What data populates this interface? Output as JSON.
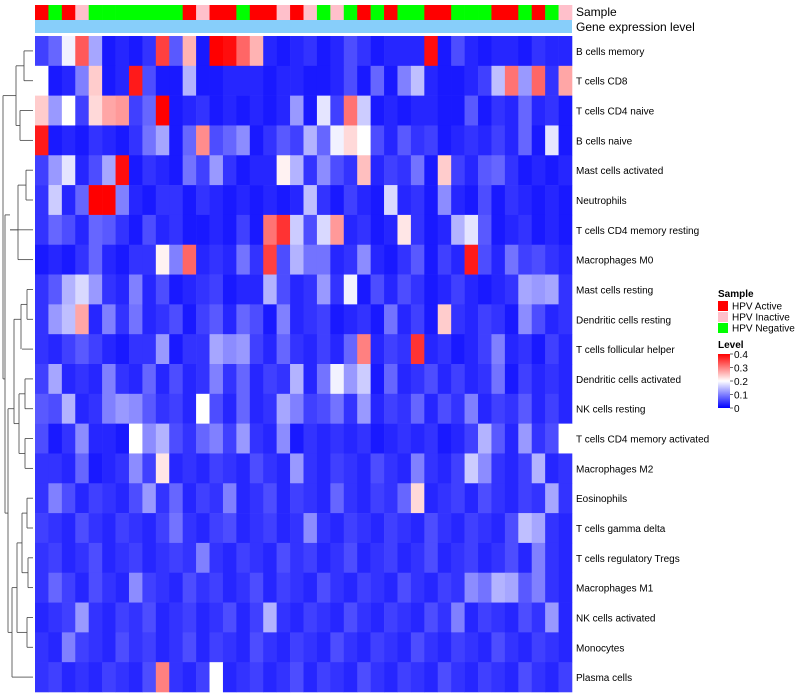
{
  "chart_data": {
    "type": "heatmap",
    "annotation_tracks": [
      "Sample",
      "Gene expression level"
    ],
    "samples": [
      "A",
      "N",
      "A",
      "I",
      "N",
      "N",
      "N",
      "N",
      "N",
      "N",
      "N",
      "A",
      "I",
      "A",
      "A",
      "N",
      "A",
      "A",
      "I",
      "A",
      "I",
      "N",
      "I",
      "N",
      "A",
      "N",
      "A",
      "N",
      "N",
      "A",
      "A",
      "N",
      "N",
      "N",
      "A",
      "A",
      "N",
      "A",
      "N",
      "I"
    ],
    "rows": [
      "B cells memory",
      "T cells CD8",
      "T cells CD4 naive",
      "B cells naive",
      "Mast cells activated",
      "Neutrophils",
      "T cells CD4 memory resting",
      "Macrophages M0",
      "Mast cells resting",
      "Dendritic cells resting",
      "T cells follicular helper",
      "Dendritic cells activated",
      "NK cells resting",
      "T cells CD4 memory activated",
      "Macrophages M2",
      "Eosinophils",
      "T cells gamma delta",
      "T cells regulatory  Tregs",
      "Macrophages M1",
      "NK cells activated",
      "Monocytes",
      "Plasma cells"
    ],
    "values": [
      [
        0.05,
        0.08,
        0.19,
        0.33,
        0.13,
        0.02,
        0.03,
        0.02,
        0.04,
        0.35,
        0.07,
        0.26,
        0.02,
        0.4,
        0.39,
        0.32,
        0.26,
        0.03,
        0.02,
        0.03,
        0.04,
        0.02,
        0.03,
        0.06,
        0.04,
        0.02,
        0.03,
        0.03,
        0.03,
        0.39,
        0.02,
        0.06,
        0.03,
        0.02,
        0.03,
        0.03,
        0.02,
        0.04,
        0.03,
        0.03
      ],
      [
        0.2,
        0.02,
        0.03,
        0.1,
        0.24,
        0.02,
        0.03,
        0.38,
        0.06,
        0.02,
        0.02,
        0.14,
        0.02,
        0.02,
        0.03,
        0.03,
        0.03,
        0.02,
        0.03,
        0.03,
        0.02,
        0.02,
        0.03,
        0.06,
        0.02,
        0.08,
        0.02,
        0.1,
        0.15,
        0.03,
        0.02,
        0.02,
        0.03,
        0.05,
        0.15,
        0.31,
        0.12,
        0.32,
        0.04,
        0.27
      ],
      [
        0.24,
        0.12,
        0.2,
        0.05,
        0.23,
        0.27,
        0.28,
        0.05,
        0.08,
        0.4,
        0.02,
        0.03,
        0.04,
        0.02,
        0.03,
        0.02,
        0.03,
        0.02,
        0.03,
        0.12,
        0.02,
        0.18,
        0.05,
        0.31,
        0.16,
        0.02,
        0.03,
        0.02,
        0.03,
        0.03,
        0.02,
        0.02,
        0.07,
        0.02,
        0.04,
        0.03,
        0.08,
        0.03,
        0.04,
        0.02
      ],
      [
        0.38,
        0.02,
        0.03,
        0.02,
        0.04,
        0.03,
        0.02,
        0.04,
        0.09,
        0.13,
        0.02,
        0.08,
        0.29,
        0.06,
        0.08,
        0.11,
        0.02,
        0.04,
        0.07,
        0.05,
        0.14,
        0.08,
        0.19,
        0.23,
        0.2,
        0.06,
        0.03,
        0.07,
        0.04,
        0.05,
        0.02,
        0.03,
        0.04,
        0.03,
        0.05,
        0.03,
        0.08,
        0.02,
        0.18,
        0.02
      ],
      [
        0.05,
        0.12,
        0.18,
        0.03,
        0.06,
        0.13,
        0.39,
        0.02,
        0.04,
        0.03,
        0.02,
        0.09,
        0.05,
        0.12,
        0.04,
        0.02,
        0.03,
        0.03,
        0.21,
        0.14,
        0.04,
        0.11,
        0.06,
        0.04,
        0.25,
        0.03,
        0.05,
        0.04,
        0.09,
        0.02,
        0.24,
        0.05,
        0.03,
        0.07,
        0.08,
        0.04,
        0.02,
        0.03,
        0.02,
        0.03
      ],
      [
        0.04,
        0.16,
        0.03,
        0.08,
        0.4,
        0.4,
        0.1,
        0.03,
        0.02,
        0.04,
        0.04,
        0.02,
        0.04,
        0.03,
        0.02,
        0.03,
        0.02,
        0.03,
        0.02,
        0.03,
        0.15,
        0.04,
        0.02,
        0.05,
        0.03,
        0.02,
        0.17,
        0.03,
        0.04,
        0.02,
        0.11,
        0.03,
        0.02,
        0.06,
        0.02,
        0.04,
        0.03,
        0.02,
        0.03,
        0.02
      ],
      [
        0.04,
        0.08,
        0.06,
        0.03,
        0.08,
        0.07,
        0.04,
        0.02,
        0.06,
        0.03,
        0.04,
        0.02,
        0.02,
        0.03,
        0.02,
        0.05,
        0.02,
        0.31,
        0.36,
        0.16,
        0.06,
        0.17,
        0.28,
        0.03,
        0.04,
        0.02,
        0.03,
        0.22,
        0.04,
        0.02,
        0.03,
        0.14,
        0.18,
        0.07,
        0.02,
        0.03,
        0.04,
        0.02,
        0.03,
        0.02
      ],
      [
        0.02,
        0.03,
        0.02,
        0.04,
        0.08,
        0.03,
        0.02,
        0.04,
        0.04,
        0.21,
        0.1,
        0.32,
        0.03,
        0.04,
        0.03,
        0.09,
        0.04,
        0.35,
        0.06,
        0.14,
        0.09,
        0.09,
        0.03,
        0.04,
        0.11,
        0.03,
        0.02,
        0.04,
        0.07,
        0.02,
        0.05,
        0.03,
        0.38,
        0.06,
        0.03,
        0.09,
        0.05,
        0.06,
        0.04,
        0.03
      ],
      [
        0.04,
        0.07,
        0.14,
        0.17,
        0.12,
        0.04,
        0.03,
        0.1,
        0.03,
        0.06,
        0.02,
        0.03,
        0.04,
        0.05,
        0.02,
        0.03,
        0.03,
        0.14,
        0.06,
        0.03,
        0.04,
        0.12,
        0.04,
        0.19,
        0.02,
        0.06,
        0.03,
        0.06,
        0.04,
        0.02,
        0.03,
        0.05,
        0.03,
        0.02,
        0.03,
        0.04,
        0.13,
        0.12,
        0.13,
        0.04
      ],
      [
        0.04,
        0.12,
        0.15,
        0.27,
        0.03,
        0.1,
        0.04,
        0.09,
        0.03,
        0.04,
        0.06,
        0.02,
        0.05,
        0.07,
        0.03,
        0.08,
        0.06,
        0.02,
        0.1,
        0.03,
        0.04,
        0.05,
        0.02,
        0.03,
        0.04,
        0.02,
        0.09,
        0.03,
        0.05,
        0.02,
        0.24,
        0.04,
        0.03,
        0.05,
        0.04,
        0.02,
        0.11,
        0.06,
        0.03,
        0.04
      ],
      [
        0.04,
        0.03,
        0.05,
        0.07,
        0.05,
        0.03,
        0.02,
        0.04,
        0.04,
        0.12,
        0.02,
        0.04,
        0.04,
        0.13,
        0.11,
        0.12,
        0.05,
        0.03,
        0.08,
        0.04,
        0.03,
        0.05,
        0.03,
        0.08,
        0.3,
        0.03,
        0.05,
        0.04,
        0.36,
        0.03,
        0.04,
        0.02,
        0.03,
        0.05,
        0.1,
        0.03,
        0.04,
        0.02,
        0.05,
        0.03
      ],
      [
        0.05,
        0.13,
        0.03,
        0.04,
        0.03,
        0.1,
        0.04,
        0.03,
        0.08,
        0.03,
        0.06,
        0.03,
        0.04,
        0.1,
        0.04,
        0.08,
        0.03,
        0.05,
        0.04,
        0.14,
        0.03,
        0.09,
        0.19,
        0.12,
        0.16,
        0.02,
        0.08,
        0.03,
        0.04,
        0.06,
        0.03,
        0.05,
        0.03,
        0.04,
        0.09,
        0.02,
        0.05,
        0.03,
        0.04,
        0.03
      ],
      [
        0.07,
        0.06,
        0.14,
        0.03,
        0.04,
        0.1,
        0.12,
        0.11,
        0.07,
        0.04,
        0.05,
        0.03,
        0.2,
        0.06,
        0.03,
        0.08,
        0.03,
        0.04,
        0.13,
        0.1,
        0.05,
        0.06,
        0.09,
        0.04,
        0.12,
        0.03,
        0.05,
        0.04,
        0.08,
        0.03,
        0.06,
        0.04,
        0.1,
        0.03,
        0.05,
        0.04,
        0.07,
        0.03,
        0.05,
        0.03
      ],
      [
        0.06,
        0.02,
        0.04,
        0.11,
        0.03,
        0.03,
        0.02,
        0.2,
        0.11,
        0.14,
        0.06,
        0.04,
        0.08,
        0.1,
        0.05,
        0.12,
        0.04,
        0.03,
        0.11,
        0.02,
        0.04,
        0.03,
        0.04,
        0.03,
        0.04,
        0.02,
        0.03,
        0.04,
        0.03,
        0.04,
        0.02,
        0.03,
        0.05,
        0.14,
        0.07,
        0.03,
        0.12,
        0.04,
        0.06,
        0.2
      ],
      [
        0.04,
        0.04,
        0.03,
        0.08,
        0.02,
        0.03,
        0.04,
        0.11,
        0.05,
        0.22,
        0.03,
        0.04,
        0.03,
        0.05,
        0.04,
        0.03,
        0.06,
        0.04,
        0.03,
        0.12,
        0.04,
        0.03,
        0.05,
        0.04,
        0.03,
        0.06,
        0.04,
        0.03,
        0.1,
        0.04,
        0.03,
        0.05,
        0.16,
        0.11,
        0.04,
        0.03,
        0.05,
        0.14,
        0.03,
        0.04
      ],
      [
        0.04,
        0.1,
        0.06,
        0.03,
        0.05,
        0.04,
        0.03,
        0.06,
        0.12,
        0.04,
        0.08,
        0.03,
        0.05,
        0.04,
        0.1,
        0.03,
        0.04,
        0.06,
        0.03,
        0.05,
        0.04,
        0.03,
        0.08,
        0.04,
        0.03,
        0.05,
        0.04,
        0.08,
        0.23,
        0.03,
        0.04,
        0.05,
        0.03,
        0.06,
        0.04,
        0.03,
        0.05,
        0.04,
        0.13,
        0.04
      ],
      [
        0.05,
        0.04,
        0.03,
        0.06,
        0.04,
        0.03,
        0.05,
        0.04,
        0.03,
        0.05,
        0.09,
        0.04,
        0.03,
        0.05,
        0.06,
        0.03,
        0.04,
        0.05,
        0.03,
        0.04,
        0.11,
        0.04,
        0.03,
        0.05,
        0.04,
        0.03,
        0.05,
        0.04,
        0.03,
        0.06,
        0.04,
        0.03,
        0.05,
        0.04,
        0.03,
        0.06,
        0.15,
        0.13,
        0.04,
        0.03
      ],
      [
        0.04,
        0.05,
        0.03,
        0.04,
        0.06,
        0.03,
        0.04,
        0.05,
        0.03,
        0.04,
        0.05,
        0.04,
        0.1,
        0.04,
        0.03,
        0.05,
        0.04,
        0.03,
        0.06,
        0.04,
        0.05,
        0.03,
        0.04,
        0.06,
        0.03,
        0.04,
        0.05,
        0.03,
        0.04,
        0.06,
        0.03,
        0.04,
        0.05,
        0.03,
        0.04,
        0.06,
        0.03,
        0.1,
        0.04,
        0.03
      ],
      [
        0.04,
        0.08,
        0.05,
        0.03,
        0.06,
        0.04,
        0.03,
        0.11,
        0.05,
        0.04,
        0.03,
        0.06,
        0.04,
        0.05,
        0.03,
        0.04,
        0.06,
        0.03,
        0.05,
        0.04,
        0.03,
        0.06,
        0.04,
        0.03,
        0.05,
        0.04,
        0.03,
        0.06,
        0.04,
        0.03,
        0.05,
        0.04,
        0.11,
        0.09,
        0.14,
        0.13,
        0.07,
        0.1,
        0.04,
        0.03
      ],
      [
        0.03,
        0.04,
        0.05,
        0.12,
        0.04,
        0.03,
        0.05,
        0.04,
        0.06,
        0.03,
        0.04,
        0.05,
        0.03,
        0.04,
        0.06,
        0.03,
        0.05,
        0.14,
        0.04,
        0.03,
        0.05,
        0.04,
        0.03,
        0.06,
        0.04,
        0.03,
        0.05,
        0.04,
        0.03,
        0.06,
        0.04,
        0.1,
        0.03,
        0.05,
        0.04,
        0.03,
        0.06,
        0.04,
        0.12,
        0.03
      ],
      [
        0.04,
        0.03,
        0.1,
        0.05,
        0.04,
        0.03,
        0.06,
        0.04,
        0.05,
        0.03,
        0.04,
        0.06,
        0.03,
        0.05,
        0.04,
        0.03,
        0.06,
        0.04,
        0.03,
        0.05,
        0.04,
        0.03,
        0.06,
        0.04,
        0.03,
        0.05,
        0.04,
        0.03,
        0.06,
        0.04,
        0.03,
        0.05,
        0.04,
        0.03,
        0.06,
        0.04,
        0.03,
        0.05,
        0.04,
        0.03
      ],
      [
        0.04,
        0.05,
        0.03,
        0.04,
        0.03,
        0.05,
        0.04,
        0.03,
        0.06,
        0.3,
        0.04,
        0.03,
        0.05,
        0.2,
        0.03,
        0.04,
        0.05,
        0.03,
        0.04,
        0.06,
        0.03,
        0.05,
        0.04,
        0.03,
        0.06,
        0.04,
        0.03,
        0.05,
        0.04,
        0.03,
        0.06,
        0.04,
        0.03,
        0.05,
        0.04,
        0.03,
        0.06,
        0.04,
        0.03,
        0.05
      ]
    ],
    "legend": {
      "sample_title": "Sample",
      "sample_items": [
        {
          "key": "A",
          "label": "HPV Active",
          "color": "#ff0000"
        },
        {
          "key": "I",
          "label": "HPV Inactive",
          "color": "#ffc0cb"
        },
        {
          "key": "N",
          "label": "HPV Negative",
          "color": "#00ff00"
        }
      ],
      "level_title": "Level",
      "level_ticks": [
        0.4,
        0.3,
        0.2,
        0.1,
        0
      ],
      "level_min": 0,
      "level_max": 0.4
    },
    "colors": {
      "low": "#0000ff",
      "mid": "#ffffff",
      "high": "#ff0000",
      "expression_track": "#87cefa"
    }
  }
}
